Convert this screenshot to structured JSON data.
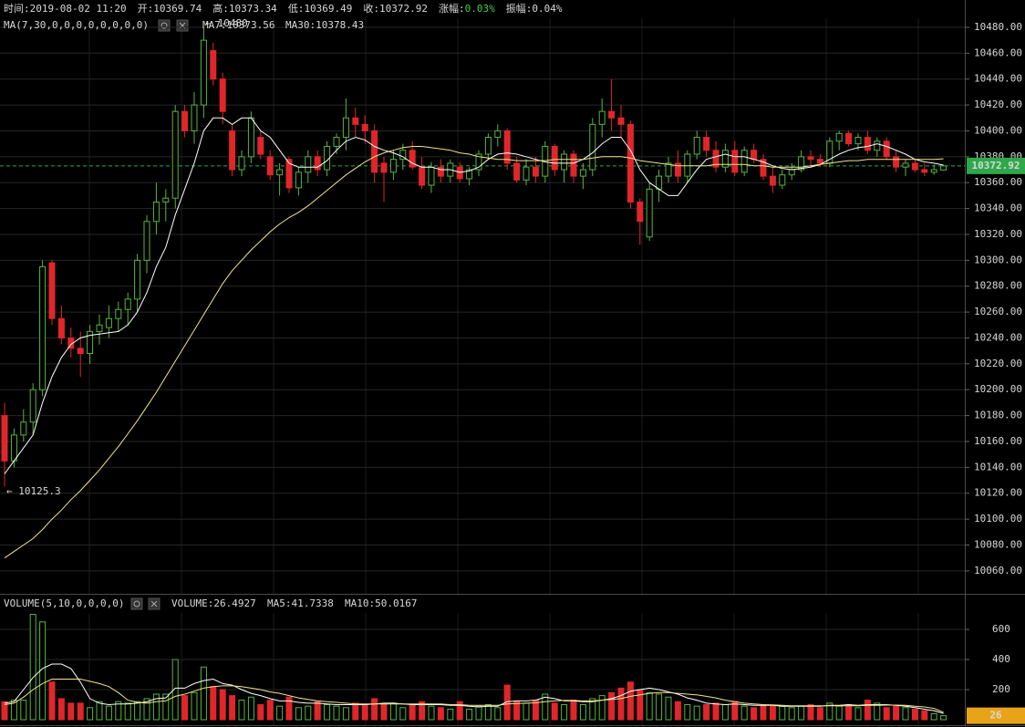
{
  "chart_data": [
    {
      "type": "candlestick",
      "header": [
        {
          "label": "时间:",
          "value": "2019-08-02 11:20"
        },
        {
          "label": "开:",
          "value": "10369.74"
        },
        {
          "label": "高:",
          "value": "10373.34"
        },
        {
          "label": "低:",
          "value": "10369.49"
        },
        {
          "label": "收:",
          "value": "10372.92"
        },
        {
          "label": "涨幅:",
          "value": "0.03%",
          "color": "#3fd04a"
        },
        {
          "label": "振幅:",
          "value": "0.04%"
        }
      ],
      "indicator": "MA(7,30,0,0,0,0,0,0,0,0)",
      "up_color": "#56b63c",
      "down_color": "#e0262a",
      "open": [
        10180,
        10145,
        10165,
        10175,
        10200,
        10298,
        10255,
        10240,
        10232,
        10228,
        10245,
        10248,
        10255,
        10262,
        10270,
        10300,
        10330,
        10345,
        10348,
        10415,
        10400,
        10420,
        10462,
        10440,
        10400,
        10370,
        10380,
        10395,
        10380,
        10366,
        10378,
        10356,
        10368,
        10380,
        10370,
        10388,
        10395,
        10410,
        10405,
        10400,
        10375,
        10368,
        10378,
        10385,
        10372,
        10358,
        10372,
        10365,
        10372,
        10363,
        10370,
        10382,
        10395,
        10400,
        10375,
        10362,
        10372,
        10365,
        10388,
        10370,
        10382,
        10365,
        10370,
        10405,
        10415,
        10410,
        10405,
        10345,
        10318,
        10355,
        10365,
        10375,
        10365,
        10382,
        10395,
        10385,
        10372,
        10385,
        10368,
        10385,
        10378,
        10365,
        10358,
        10366,
        10370,
        10380,
        10378,
        10375,
        10392,
        10398,
        10390,
        10395,
        10385,
        10392,
        10380,
        10372,
        10375,
        10370,
        10368,
        10369.74
      ],
      "high": [
        10190,
        10170,
        10185,
        10205,
        10300,
        10300,
        10265,
        10248,
        10245,
        10250,
        10258,
        10265,
        10268,
        10275,
        10305,
        10335,
        10360,
        10355,
        10420,
        10420,
        10430,
        10480,
        10468,
        10445,
        10405,
        10385,
        10415,
        10400,
        10385,
        10375,
        10380,
        10372,
        10385,
        10385,
        10392,
        10398,
        10425,
        10418,
        10412,
        10405,
        10380,
        10385,
        10390,
        10392,
        10380,
        10376,
        10378,
        10378,
        10376,
        10372,
        10385,
        10398,
        10405,
        10402,
        10380,
        10378,
        10380,
        10392,
        10390,
        10385,
        10385,
        10375,
        10410,
        10425,
        10440,
        10420,
        10408,
        10348,
        10360,
        10370,
        10380,
        10385,
        10385,
        10400,
        10400,
        10392,
        10390,
        10392,
        10388,
        10390,
        10382,
        10372,
        10370,
        10375,
        10385,
        10385,
        10382,
        10395,
        10400,
        10400,
        10398,
        10400,
        10395,
        10395,
        10385,
        10378,
        10378,
        10375,
        10374,
        10373.34
      ],
      "low": [
        10125.3,
        10140,
        10160,
        10165,
        10195,
        10250,
        10235,
        10225,
        10210,
        10220,
        10235,
        10240,
        10245,
        10250,
        10260,
        10290,
        10320,
        10330,
        10340,
        10395,
        10390,
        10410,
        10435,
        10405,
        10365,
        10365,
        10375,
        10378,
        10362,
        10350,
        10352,
        10350,
        10360,
        10365,
        10365,
        10382,
        10385,
        10395,
        10390,
        10360,
        10345,
        10362,
        10370,
        10370,
        10355,
        10352,
        10360,
        10360,
        10360,
        10358,
        10365,
        10378,
        10388,
        10370,
        10360,
        10358,
        10360,
        10360,
        10365,
        10360,
        10360,
        10355,
        10365,
        10395,
        10400,
        10395,
        10340,
        10312,
        10315,
        10345,
        10360,
        10360,
        10360,
        10378,
        10380,
        10368,
        10368,
        10365,
        10365,
        10375,
        10362,
        10352,
        10355,
        10362,
        10368,
        10372,
        10372,
        10372,
        10385,
        10388,
        10385,
        10382,
        10380,
        10378,
        10368,
        10365,
        10368,
        10365,
        10366,
        10369.49
      ],
      "close": [
        10145,
        10165,
        10175,
        10200,
        10295,
        10255,
        10240,
        10232,
        10228,
        10245,
        10250,
        10255,
        10262,
        10270,
        10300,
        10330,
        10345,
        10348,
        10415,
        10400,
        10420,
        10470,
        10440,
        10415,
        10370,
        10380,
        10410,
        10382,
        10366,
        10370,
        10356,
        10368,
        10380,
        10370,
        10388,
        10395,
        10410,
        10405,
        10400,
        10368,
        10368,
        10378,
        10385,
        10372,
        10358,
        10372,
        10365,
        10375,
        10363,
        10370,
        10382,
        10395,
        10400,
        10375,
        10362,
        10372,
        10365,
        10388,
        10370,
        10382,
        10365,
        10370,
        10405,
        10415,
        10410,
        10405,
        10345,
        10330,
        10355,
        10365,
        10375,
        10365,
        10382,
        10395,
        10385,
        10372,
        10385,
        10368,
        10385,
        10378,
        10365,
        10358,
        10366,
        10370,
        10380,
        10378,
        10375,
        10392,
        10398,
        10390,
        10395,
        10385,
        10392,
        10380,
        10372,
        10375,
        10370,
        10368,
        10370,
        10372.92
      ],
      "series": [
        {
          "name": "MA7:10373.56",
          "color": "#ffffff",
          "values": [
            10135,
            10145,
            10155,
            10165,
            10190,
            10210,
            10225,
            10235,
            10240,
            10242,
            10243,
            10244,
            10245,
            10250,
            10260,
            10275,
            10295,
            10310,
            10335,
            10355,
            10375,
            10400,
            10410,
            10410,
            10405,
            10410,
            10410,
            10400,
            10395,
            10385,
            10375,
            10372,
            10372,
            10372,
            10377,
            10385,
            10392,
            10395,
            10393,
            10388,
            10385,
            10383,
            10380,
            10375,
            10372,
            10372,
            10370,
            10370,
            10368,
            10369,
            10372,
            10378,
            10382,
            10383,
            10382,
            10380,
            10378,
            10376,
            10375,
            10375,
            10375,
            10378,
            10383,
            10390,
            10395,
            10395,
            10385,
            10370,
            10360,
            10355,
            10350,
            10350,
            10360,
            10370,
            10378,
            10380,
            10382,
            10380,
            10380,
            10378,
            10376,
            10373,
            10371,
            10370,
            10371,
            10372,
            10374,
            10378,
            10382,
            10385,
            10387,
            10388,
            10390,
            10388,
            10385,
            10382,
            10378,
            10376,
            10375,
            10373.56
          ]
        },
        {
          "name": "MA30:10378.43",
          "color": "#f2e68a",
          "values": [
            10070,
            10075,
            10080,
            10085,
            10092,
            10100,
            10107,
            10115,
            10122,
            10130,
            10138,
            10147,
            10156,
            10166,
            10176,
            10187,
            10198,
            10210,
            10222,
            10234,
            10246,
            10258,
            10270,
            10282,
            10292,
            10300,
            10308,
            10315,
            10322,
            10328,
            10333,
            10337,
            10342,
            10348,
            10354,
            10360,
            10366,
            10371,
            10376,
            10380,
            10383,
            10385,
            10387,
            10388,
            10388,
            10387,
            10386,
            10385,
            10383,
            10382,
            10380,
            10379,
            10378,
            10378,
            10377,
            10377,
            10377,
            10377,
            10378,
            10378,
            10378,
            10378,
            10379,
            10380,
            10380,
            10380,
            10379,
            10377,
            10376,
            10375,
            10374,
            10373,
            10373,
            10373,
            10373,
            10374,
            10374,
            10374,
            10374,
            10373,
            10373,
            10372,
            10372,
            10372,
            10372,
            10373,
            10374,
            10375,
            10376,
            10377,
            10377,
            10378,
            10378,
            10378,
            10378,
            10378,
            10378,
            10378,
            10378,
            10378.43
          ]
        }
      ],
      "max_label": "← 10480",
      "min_label": "← 10125.3",
      "last_label": "10372.92",
      "last_color": "#2fa84a",
      "ylim": [
        10043,
        10487
      ],
      "yticks": [
        {
          "value": 10060,
          "label": "10060.00"
        },
        {
          "value": 10080,
          "label": "10080.00"
        },
        {
          "value": 10100,
          "label": "10100.00"
        },
        {
          "value": 10120,
          "label": "10120.00"
        },
        {
          "value": 10140,
          "label": "10140.00"
        },
        {
          "value": 10160,
          "label": "10160.00"
        },
        {
          "value": 10180,
          "label": "10180.00"
        },
        {
          "value": 10200,
          "label": "10200.00"
        },
        {
          "value": 10220,
          "label": "10220.00"
        },
        {
          "value": 10240,
          "label": "10240.00"
        },
        {
          "value": 10260,
          "label": "10260.00"
        },
        {
          "value": 10280,
          "label": "10280.00"
        },
        {
          "value": 10300,
          "label": "10300.00"
        },
        {
          "value": 10320,
          "label": "10320.00"
        },
        {
          "value": 10340,
          "label": "10340.00"
        },
        {
          "value": 10360,
          "label": "10360.00"
        },
        {
          "value": 10380,
          "label": "10380.00"
        },
        {
          "value": 10400,
          "label": "10400.00"
        },
        {
          "value": 10420,
          "label": "10420.00"
        },
        {
          "value": 10440,
          "label": "10440.00"
        },
        {
          "value": 10460,
          "label": "10460.00"
        },
        {
          "value": 10480,
          "label": "10480.00"
        }
      ],
      "grid": true
    },
    {
      "type": "volume",
      "indicator": "VOLUME(5,10,0,0,0,0)",
      "name": "VOLUME:26.4927",
      "values": [
        120,
        130,
        130,
        700,
        650,
        250,
        140,
        110,
        110,
        80,
        120,
        90,
        120,
        110,
        120,
        140,
        170,
        170,
        400,
        160,
        180,
        350,
        220,
        200,
        160,
        130,
        150,
        100,
        130,
        90,
        150,
        80,
        90,
        120,
        100,
        90,
        80,
        110,
        100,
        140,
        100,
        110,
        80,
        100,
        120,
        90,
        80,
        70,
        120,
        70,
        90,
        100,
        80,
        230,
        120,
        110,
        130,
        170,
        110,
        100,
        130,
        100,
        140,
        160,
        180,
        210,
        250,
        200,
        180,
        170,
        150,
        120,
        100,
        90,
        100,
        110,
        100,
        120,
        90,
        80,
        100,
        90,
        90,
        80,
        90,
        100,
        80,
        110,
        90,
        100,
        80,
        130,
        110,
        80,
        90,
        80,
        70,
        60,
        40,
        26.4927
      ],
      "series": [
        {
          "name": "MA5:41.7338",
          "color": "#ffffff",
          "values": [
            110,
            120,
            200,
            280,
            340,
            370,
            370,
            340,
            250,
            140,
            110,
            100,
            105,
            105,
            110,
            120,
            140,
            145,
            210,
            210,
            240,
            260,
            270,
            240,
            230,
            200,
            175,
            160,
            140,
            125,
            125,
            115,
            110,
            110,
            105,
            100,
            100,
            100,
            100,
            105,
            110,
            110,
            105,
            100,
            100,
            100,
            100,
            95,
            95,
            90,
            85,
            90,
            90,
            120,
            125,
            125,
            130,
            150,
            140,
            125,
            125,
            120,
            120,
            130,
            140,
            160,
            190,
            200,
            210,
            200,
            185,
            170,
            145,
            130,
            110,
            105,
            100,
            105,
            100,
            95,
            95,
            95,
            90,
            90,
            90,
            90,
            90,
            95,
            95,
            100,
            95,
            100,
            100,
            100,
            95,
            90,
            80,
            70,
            60,
            41.7338
          ]
        },
        {
          "name": "MA10:50.0167",
          "color": "#f2e68a",
          "values": [
            100,
            110,
            150,
            200,
            240,
            270,
            270,
            270,
            270,
            255,
            240,
            220,
            180,
            130,
            115,
            110,
            120,
            125,
            155,
            170,
            190,
            210,
            220,
            225,
            225,
            220,
            210,
            200,
            185,
            175,
            160,
            145,
            135,
            125,
            120,
            115,
            110,
            105,
            105,
            105,
            105,
            105,
            105,
            105,
            105,
            105,
            105,
            100,
            100,
            95,
            95,
            95,
            95,
            105,
            108,
            110,
            112,
            120,
            125,
            128,
            128,
            125,
            125,
            130,
            135,
            140,
            155,
            165,
            175,
            180,
            180,
            175,
            170,
            165,
            155,
            145,
            130,
            120,
            110,
            105,
            100,
            98,
            95,
            93,
            92,
            92,
            92,
            92,
            92,
            93,
            93,
            95,
            96,
            97,
            97,
            95,
            90,
            85,
            75,
            50.0167
          ]
        }
      ],
      "last_label": "26",
      "last_color": "#e8a317",
      "ylim": [
        0,
        810
      ],
      "yticks": [
        200,
        400,
        600
      ],
      "grid": true
    }
  ]
}
